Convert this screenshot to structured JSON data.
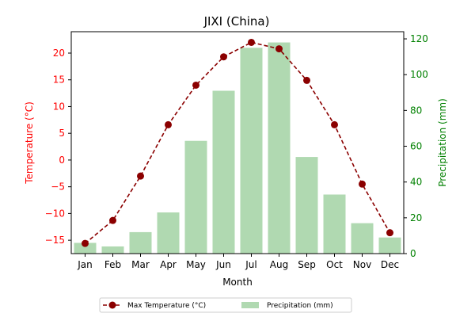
{
  "chart_data": {
    "type": "bar+line",
    "title": "JIXI (China)",
    "xlabel": "Month",
    "ylabel_left": "Temperature (°C)",
    "ylabel_right": "Precipitation (mm)",
    "categories": [
      "Jan",
      "Feb",
      "Mar",
      "Apr",
      "May",
      "Jun",
      "Jul",
      "Aug",
      "Sep",
      "Oct",
      "Nov",
      "Dec"
    ],
    "ylim_left": [
      -17.5,
      24
    ],
    "yticks_left": [
      -15,
      -10,
      -5,
      0,
      5,
      10,
      15,
      20
    ],
    "ylim_right": [
      0,
      124
    ],
    "yticks_right": [
      0,
      20,
      40,
      60,
      80,
      100,
      120
    ],
    "grid": false,
    "legend_placement": "bottom-center",
    "series": [
      {
        "name": "Max Temperature (°C)",
        "kind": "line",
        "axis": "left",
        "style": "dashed",
        "marker": "circle",
        "color": "#8b0000",
        "values": [
          -15.6,
          -11.3,
          -3.0,
          6.6,
          14.0,
          19.3,
          22.0,
          20.8,
          14.9,
          6.6,
          -4.5,
          -13.6
        ]
      },
      {
        "name": "Precipitation (mm)",
        "kind": "bar",
        "axis": "right",
        "color": "#b0d9b1",
        "values": [
          6.0,
          4.0,
          12.0,
          23.0,
          63.0,
          91.0,
          115.0,
          118.0,
          54.0,
          33.0,
          17.0,
          9.0
        ]
      }
    ],
    "colors": {
      "left_axis": "#ff0000",
      "right_axis": "#008000",
      "bar": "#b0d9b1",
      "line": "#8b0000"
    }
  }
}
